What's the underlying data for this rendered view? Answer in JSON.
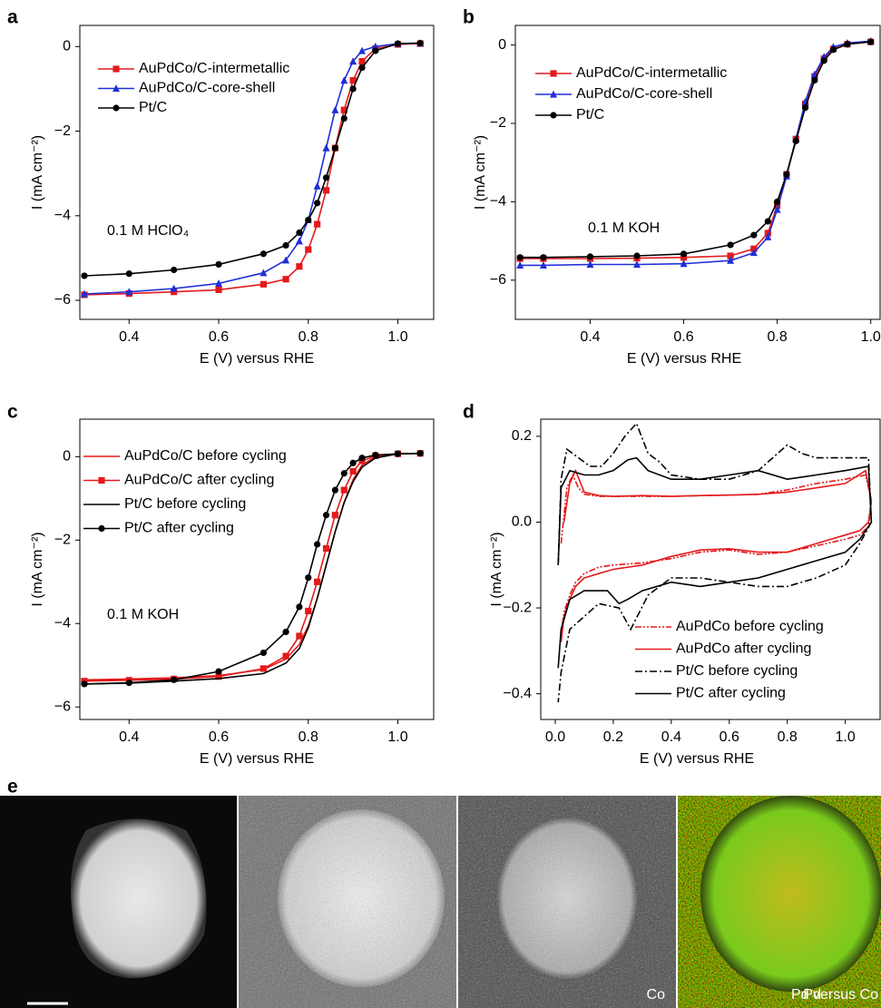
{
  "chart_data": [
    {
      "type": "line",
      "panel": "a",
      "annotation": "0.1 M HClO₄",
      "x_label": "E (V) versus RHE",
      "y_label": "I (mA cm⁻²)",
      "xlim": [
        0.29,
        1.08
      ],
      "ylim": [
        -6.45,
        0.5
      ],
      "xticks": [
        0.4,
        0.6,
        0.8,
        {
          "value": 1,
          "label": "1.0"
        }
      ],
      "yticks": [
        0,
        {
          "value": -2,
          "label": "−2"
        },
        {
          "value": -4,
          "label": "−4"
        },
        {
          "value": -6,
          "label": "−6"
        }
      ],
      "x": [
        0.3,
        0.4,
        0.5,
        0.6,
        0.7,
        0.75,
        0.78,
        0.8,
        0.82,
        0.84,
        0.86,
        0.88,
        0.9,
        0.92,
        0.95,
        1.0,
        1.05
      ],
      "series": [
        {
          "name": "AuPdCo/C-intermetallic",
          "color": "#e41a1c",
          "marker": "square",
          "values": [
            -5.87,
            -5.84,
            -5.8,
            -5.75,
            -5.62,
            -5.5,
            -5.2,
            -4.8,
            -4.2,
            -3.4,
            -2.4,
            -1.5,
            -0.8,
            -0.35,
            -0.05,
            0.05,
            0.07
          ]
        },
        {
          "name": "AuPdCo/C-core-shell",
          "color": "#1f2fd8",
          "marker": "triangle",
          "values": [
            -5.85,
            -5.8,
            -5.72,
            -5.6,
            -5.35,
            -5.05,
            -4.6,
            -4.1,
            -3.3,
            -2.4,
            -1.5,
            -0.8,
            -0.35,
            -0.1,
            0.0,
            0.07,
            0.08
          ]
        },
        {
          "name": "Pt/C",
          "color": "#000000",
          "marker": "circle",
          "values": [
            -5.42,
            -5.37,
            -5.28,
            -5.15,
            -4.9,
            -4.7,
            -4.4,
            -4.1,
            -3.7,
            -3.1,
            -2.4,
            -1.7,
            -1.0,
            -0.5,
            -0.1,
            0.07,
            0.08
          ]
        }
      ]
    },
    {
      "type": "line",
      "panel": "b",
      "annotation": "0.1 M KOH",
      "x_label": "E (V) versus RHE",
      "y_label": "I (mA cm⁻²)",
      "xlim": [
        0.24,
        1.02
      ],
      "ylim": [
        -7,
        0.5
      ],
      "xticks": [
        0.4,
        0.6,
        0.8,
        {
          "value": 1,
          "label": "1.0"
        }
      ],
      "yticks": [
        0,
        {
          "value": -2,
          "label": "−2"
        },
        {
          "value": -4,
          "label": "−4"
        },
        {
          "value": -6,
          "label": "−6"
        }
      ],
      "x": [
        0.25,
        0.3,
        0.4,
        0.5,
        0.6,
        0.7,
        0.75,
        0.78,
        0.8,
        0.82,
        0.84,
        0.86,
        0.88,
        0.9,
        0.92,
        0.95,
        1.0
      ],
      "series": [
        {
          "name": "AuPdCo/C-intermetallic",
          "color": "#e41a1c",
          "marker": "square",
          "values": [
            -5.45,
            -5.45,
            -5.45,
            -5.44,
            -5.42,
            -5.38,
            -5.2,
            -4.8,
            -4.1,
            -3.3,
            -2.4,
            -1.5,
            -0.8,
            -0.35,
            -0.1,
            0.02,
            0.08
          ]
        },
        {
          "name": "AuPdCo/C-core-shell",
          "color": "#1f2fd8",
          "marker": "triangle",
          "values": [
            -5.62,
            -5.62,
            -5.6,
            -5.6,
            -5.58,
            -5.5,
            -5.3,
            -4.9,
            -4.2,
            -3.35,
            -2.4,
            -1.45,
            -0.75,
            -0.3,
            -0.05,
            0.05,
            0.1
          ]
        },
        {
          "name": "Pt/C",
          "color": "#000000",
          "marker": "circle",
          "values": [
            -5.42,
            -5.42,
            -5.4,
            -5.38,
            -5.33,
            -5.1,
            -4.85,
            -4.5,
            -4.0,
            -3.3,
            -2.45,
            -1.6,
            -0.9,
            -0.4,
            -0.12,
            0.02,
            0.08
          ]
        }
      ]
    },
    {
      "type": "line",
      "panel": "c",
      "annotation": "0.1 M KOH",
      "x_label": "E (V) versus RHE",
      "y_label": "I (mA cm⁻²)",
      "xlim": [
        0.29,
        1.08
      ],
      "ylim": [
        -6.3,
        0.9
      ],
      "xticks": [
        0.4,
        0.6,
        0.8,
        {
          "value": 1,
          "label": "1.0"
        }
      ],
      "yticks": [
        0,
        {
          "value": -2,
          "label": "−2"
        },
        {
          "value": -4,
          "label": "−4"
        },
        {
          "value": -6,
          "label": "−6"
        }
      ],
      "x": [
        0.3,
        0.4,
        0.5,
        0.6,
        0.7,
        0.75,
        0.78,
        0.8,
        0.82,
        0.84,
        0.86,
        0.88,
        0.9,
        0.92,
        0.95,
        1.0,
        1.05
      ],
      "series": [
        {
          "name": "AuPdCo/C before cycling",
          "color": "#e41a1c",
          "values": [
            -5.35,
            -5.33,
            -5.3,
            -5.25,
            -5.1,
            -4.85,
            -4.5,
            -4.05,
            -3.4,
            -2.6,
            -1.8,
            -1.1,
            -0.55,
            -0.2,
            0.0,
            0.07,
            0.08
          ]
        },
        {
          "name": "AuPdCo/C after cycling",
          "color": "#e41a1c",
          "marker": "square",
          "values": [
            -5.38,
            -5.36,
            -5.33,
            -5.27,
            -5.08,
            -4.78,
            -4.3,
            -3.7,
            -3.0,
            -2.2,
            -1.4,
            -0.8,
            -0.35,
            -0.1,
            0.02,
            0.07,
            0.08
          ]
        },
        {
          "name": "Pt/C before cycling",
          "color": "#000000",
          "values": [
            -5.45,
            -5.43,
            -5.38,
            -5.32,
            -5.2,
            -4.95,
            -4.6,
            -4.1,
            -3.4,
            -2.6,
            -1.8,
            -1.1,
            -0.6,
            -0.25,
            -0.03,
            0.07,
            0.08
          ]
        },
        {
          "name": "Pt/C after cycling",
          "color": "#000000",
          "marker": "circle",
          "values": [
            -5.45,
            -5.42,
            -5.35,
            -5.15,
            -4.7,
            -4.2,
            -3.6,
            -2.9,
            -2.1,
            -1.4,
            -0.8,
            -0.4,
            -0.15,
            -0.03,
            0.04,
            0.07,
            0.08
          ]
        }
      ]
    },
    {
      "type": "line",
      "panel": "d",
      "x_label": "E (V) versus RHE",
      "y_label": "I (mA cm⁻²)",
      "xlim": [
        -0.05,
        1.12
      ],
      "ylim": [
        -0.46,
        0.24
      ],
      "xticks": [
        {
          "value": 0,
          "label": "0.0"
        },
        0.2,
        0.4,
        0.6,
        0.8,
        {
          "value": 1,
          "label": "1.0"
        }
      ],
      "yticks": [
        0.2,
        {
          "value": 0,
          "label": "0.0"
        },
        {
          "value": -0.2,
          "label": "−0.2"
        },
        {
          "value": -0.4,
          "label": "−0.4"
        }
      ],
      "series": [
        {
          "name": "AuPdCo before cycling",
          "color": "#e41a1c",
          "dash": "dashdotdot",
          "x": [
            0.02,
            0.04,
            0.06,
            0.08,
            0.1,
            0.15,
            0.2,
            0.3,
            0.4,
            0.5,
            0.6,
            0.7,
            0.8,
            0.9,
            1.0,
            1.07,
            1.09,
            1.08,
            1.05,
            1.0,
            0.9,
            0.8,
            0.7,
            0.6,
            0.5,
            0.4,
            0.3,
            0.2,
            0.15,
            0.1,
            0.07,
            0.05,
            0.03,
            0.02
          ],
          "values": [
            -0.05,
            0.08,
            0.11,
            0.08,
            0.065,
            0.06,
            0.06,
            0.06,
            0.06,
            0.062,
            0.063,
            0.065,
            0.075,
            0.09,
            0.1,
            0.11,
            0.05,
            -0.01,
            -0.03,
            -0.04,
            -0.055,
            -0.07,
            -0.075,
            -0.065,
            -0.07,
            -0.085,
            -0.095,
            -0.1,
            -0.105,
            -0.12,
            -0.14,
            -0.17,
            -0.21,
            -0.26
          ]
        },
        {
          "name": "AuPdCo after cycling",
          "color": "#e41a1c",
          "x": [
            0.03,
            0.05,
            0.07,
            0.1,
            0.15,
            0.2,
            0.3,
            0.4,
            0.5,
            0.6,
            0.7,
            0.8,
            0.9,
            1.0,
            1.07,
            1.09,
            1.08,
            1.05,
            1.0,
            0.9,
            0.8,
            0.7,
            0.6,
            0.5,
            0.4,
            0.3,
            0.2,
            0.15,
            0.1,
            0.07,
            0.05,
            0.03,
            0.02
          ],
          "values": [
            0.0,
            0.09,
            0.12,
            0.07,
            0.062,
            0.06,
            0.062,
            0.06,
            0.062,
            0.063,
            0.065,
            0.07,
            0.08,
            0.09,
            0.12,
            0.05,
            0.0,
            -0.02,
            -0.03,
            -0.05,
            -0.07,
            -0.07,
            -0.062,
            -0.065,
            -0.08,
            -0.1,
            -0.11,
            -0.12,
            -0.13,
            -0.15,
            -0.18,
            -0.22,
            -0.28
          ]
        },
        {
          "name": "Pt/C before cycling",
          "color": "#000000",
          "dash": "dashdot",
          "x": [
            0.01,
            0.02,
            0.04,
            0.08,
            0.12,
            0.16,
            0.2,
            0.24,
            0.28,
            0.32,
            0.36,
            0.4,
            0.5,
            0.6,
            0.7,
            0.75,
            0.8,
            0.85,
            0.9,
            1.0,
            1.08,
            1.09,
            1.05,
            1.0,
            0.9,
            0.8,
            0.7,
            0.6,
            0.5,
            0.4,
            0.32,
            0.26,
            0.22,
            0.15,
            0.1,
            0.05,
            0.02,
            0.01
          ],
          "values": [
            -0.1,
            0.1,
            0.17,
            0.15,
            0.13,
            0.13,
            0.16,
            0.2,
            0.23,
            0.16,
            0.14,
            0.11,
            0.1,
            0.1,
            0.12,
            0.15,
            0.18,
            0.16,
            0.15,
            0.15,
            0.15,
            0.0,
            -0.05,
            -0.1,
            -0.13,
            -0.15,
            -0.15,
            -0.14,
            -0.13,
            -0.13,
            -0.17,
            -0.25,
            -0.2,
            -0.19,
            -0.22,
            -0.25,
            -0.35,
            -0.42
          ]
        },
        {
          "name": "Pt/C after cycling",
          "color": "#000000",
          "x": [
            0.01,
            0.02,
            0.05,
            0.1,
            0.15,
            0.2,
            0.25,
            0.28,
            0.32,
            0.4,
            0.5,
            0.6,
            0.7,
            0.8,
            0.9,
            1.0,
            1.08,
            1.09,
            1.05,
            1.0,
            0.9,
            0.8,
            0.7,
            0.6,
            0.5,
            0.4,
            0.3,
            0.25,
            0.22,
            0.18,
            0.1,
            0.05,
            0.02,
            0.01
          ],
          "values": [
            -0.1,
            0.08,
            0.12,
            0.11,
            0.11,
            0.12,
            0.145,
            0.15,
            0.12,
            0.1,
            0.1,
            0.11,
            0.12,
            0.1,
            0.11,
            0.12,
            0.13,
            0.0,
            -0.04,
            -0.07,
            -0.09,
            -0.11,
            -0.13,
            -0.14,
            -0.15,
            -0.14,
            -0.16,
            -0.18,
            -0.19,
            -0.16,
            -0.16,
            -0.18,
            -0.25,
            -0.34
          ]
        }
      ]
    }
  ],
  "panel_e": {
    "panel": "e",
    "labels": [
      "Pd",
      "Co",
      "Pd versus Co"
    ]
  }
}
